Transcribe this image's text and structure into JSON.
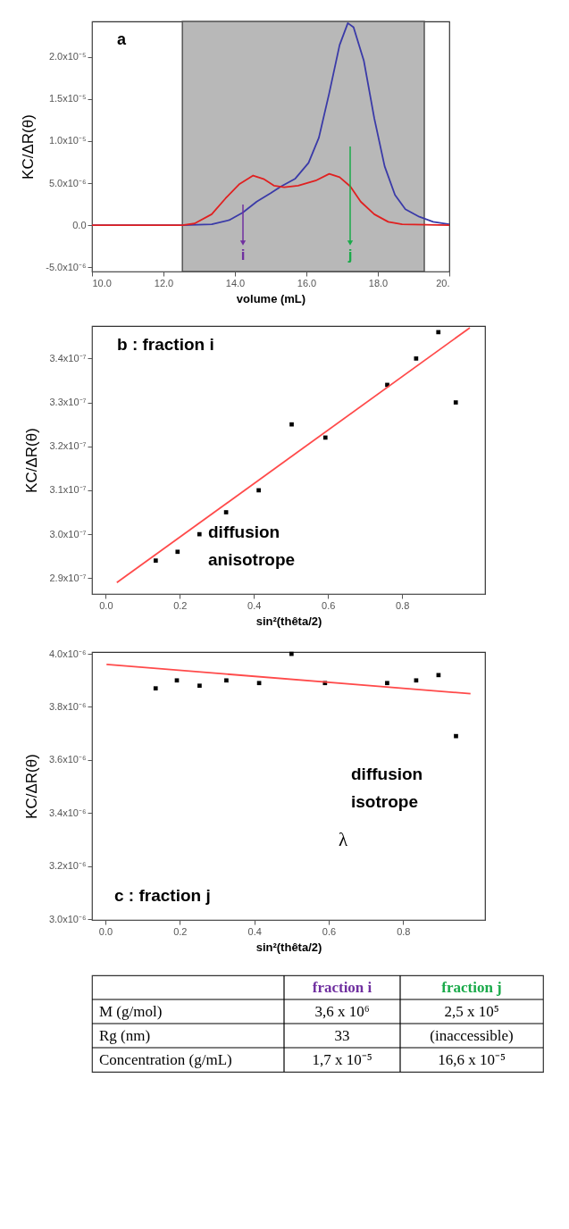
{
  "chart_data": [
    {
      "type": "line",
      "xlabel": "volume (mL)",
      "ylabel": "KC/ΔR(θ)",
      "annotations": [
        "a",
        "i",
        "j"
      ],
      "xlim": [
        10,
        20
      ],
      "ylim": [
        -5.5e-06,
        2.42e-05
      ],
      "xticks": [
        {
          "value": 10,
          "label": "10.0"
        },
        {
          "value": 12,
          "label": "12.0"
        },
        {
          "value": 14,
          "label": "14.0"
        },
        {
          "value": 16,
          "label": "16.0"
        },
        {
          "value": 18,
          "label": "18.0"
        },
        {
          "value": 20,
          "label": "20."
        }
      ],
      "yticks": [
        {
          "value": -5e-06,
          "label": "-5.0x10⁻⁶"
        },
        {
          "value": 0,
          "label": "0.0"
        },
        {
          "value": 5e-06,
          "label": "5.0x10⁻⁶"
        },
        {
          "value": 1e-05,
          "label": "1.0x10⁻⁵"
        },
        {
          "value": 1.5e-05,
          "label": "1.5x10⁻⁵"
        },
        {
          "value": 2e-05,
          "label": "2.0x10⁻⁵"
        }
      ],
      "bands": [
        {
          "axis": "x",
          "from": 12.53,
          "to": 19.3,
          "color": "#b8b8b8"
        }
      ],
      "series": [
        {
          "color": "#3a3aa8",
          "x": [
            10,
            12.53,
            13.35,
            13.84,
            14.22,
            14.61,
            15.0,
            15.29,
            15.68,
            16.06,
            16.35,
            16.64,
            16.93,
            17.16,
            17.32,
            17.61,
            17.9,
            18.19,
            18.48,
            18.77,
            19.16,
            19.55,
            20.0
          ],
          "values": [
            0,
            0,
            1e-07,
            6e-07,
            1.5e-06,
            2.8e-06,
            3.8e-06,
            4.6e-06,
            5.5e-06,
            7.4e-06,
            1.04e-05,
            1.57e-05,
            2.14e-05,
            2.4e-05,
            2.35e-05,
            1.95e-05,
            1.27e-05,
            7e-06,
            3.6e-06,
            1.9e-06,
            1e-06,
            4e-07,
            1e-07
          ]
        },
        {
          "color": "#e02020",
          "x": [
            10,
            12.53,
            12.87,
            13.35,
            13.74,
            14.13,
            14.51,
            14.8,
            15.09,
            15.38,
            15.77,
            16.26,
            16.64,
            16.93,
            17.23,
            17.52,
            17.9,
            18.29,
            18.68,
            20.0
          ],
          "values": [
            0,
            0,
            2e-07,
            1.3e-06,
            3.2e-06,
            4.9e-06,
            5.9e-06,
            5.5e-06,
            4.7e-06,
            4.5e-06,
            4.7e-06,
            5.3e-06,
            6.1e-06,
            5.7e-06,
            4.6e-06,
            2.8e-06,
            1.3e-06,
            4e-07,
            1e-07,
            0
          ]
        }
      ]
    },
    {
      "type": "scatter",
      "xlabel": "sin²(thêta/2)",
      "ylabel": "KC/ΔR(θ)",
      "annotations": [
        "b : fraction i",
        "diffusion anisotrope"
      ],
      "xlim": [
        -0.037,
        1.024
      ],
      "ylim": [
        2.864e-07,
        3.474e-07
      ],
      "xticks": [
        {
          "value": 0,
          "label": "0.0"
        },
        {
          "value": 0.2,
          "label": "0.2"
        },
        {
          "value": 0.4,
          "label": "0.4"
        },
        {
          "value": 0.6,
          "label": "0.6"
        },
        {
          "value": 0.8,
          "label": "0.8"
        }
      ],
      "yticks": [
        {
          "value": 2.9e-07,
          "label": "2.9x10⁻⁷"
        },
        {
          "value": 3e-07,
          "label": "3.0x10⁻⁷"
        },
        {
          "value": 3.1e-07,
          "label": "3.1x10⁻⁷"
        },
        {
          "value": 3.2e-07,
          "label": "3.2x10⁻⁷"
        },
        {
          "value": 3.3e-07,
          "label": "3.3x10⁻⁷"
        },
        {
          "value": 3.4e-07,
          "label": "3.4x10⁻⁷"
        }
      ],
      "series": [
        {
          "type": "scatter",
          "marker": "square",
          "color": "#000000",
          "x": [
            0.135,
            0.194,
            0.253,
            0.325,
            0.413,
            0.502,
            0.593,
            0.76,
            0.838,
            0.898,
            0.945
          ],
          "values": [
            2.94e-07,
            2.96e-07,
            3e-07,
            3.05e-07,
            3.1e-07,
            3.25e-07,
            3.22e-07,
            3.34e-07,
            3.4e-07,
            3.46e-07,
            3.3e-07
          ]
        },
        {
          "type": "line",
          "marker": "none",
          "color": "#ff4a4a",
          "x": [
            0.03,
            0.983
          ],
          "values": [
            2.89e-07,
            3.47e-07
          ]
        }
      ]
    },
    {
      "type": "scatter",
      "xlabel": "sin²(thêta/2)",
      "ylabel": "KC/ΔR(θ)",
      "annotations": [
        "c : fraction j",
        "diffusion isotrope",
        "λ"
      ],
      "xlim": [
        -0.036,
        1.02
      ],
      "ylim": [
        2.997e-06,
        4.007e-06
      ],
      "xticks": [
        {
          "value": 0,
          "label": "0.0"
        },
        {
          "value": 0.2,
          "label": "0.2"
        },
        {
          "value": 0.4,
          "label": "0.4"
        },
        {
          "value": 0.6,
          "label": "0.6"
        },
        {
          "value": 0.8,
          "label": "0.8"
        }
      ],
      "yticks": [
        {
          "value": 3e-06,
          "label": "3.0x10⁻⁶"
        },
        {
          "value": 3.2e-06,
          "label": "3.2x10⁻⁶"
        },
        {
          "value": 3.4e-06,
          "label": "3.4x10⁻⁶"
        },
        {
          "value": 3.6e-06,
          "label": "3.6x10⁻⁶"
        },
        {
          "value": 3.8e-06,
          "label": "3.8x10⁻⁶"
        },
        {
          "value": 4e-06,
          "label": "4.0x10⁻⁶"
        }
      ],
      "series": [
        {
          "type": "scatter",
          "marker": "square",
          "color": "#000000",
          "x": [
            0.135,
            0.192,
            0.253,
            0.325,
            0.413,
            0.5,
            0.59,
            0.757,
            0.835,
            0.895,
            0.942
          ],
          "values": [
            3.87e-06,
            3.9e-06,
            3.88e-06,
            3.9e-06,
            3.89e-06,
            4e-06,
            3.89e-06,
            3.89e-06,
            3.9e-06,
            3.92e-06,
            3.69e-06
          ]
        },
        {
          "type": "line",
          "marker": "none",
          "color": "#ff4a4a",
          "x": [
            0.003,
            0.981
          ],
          "values": [
            3.96e-06,
            3.85e-06
          ]
        }
      ]
    },
    {
      "type": "other",
      "annotations": [
        "fraction i",
        "fraction j",
        "M (g/mol)",
        "3,6 x 10⁶",
        "2,5 x 10⁵",
        "Rg (nm)",
        "33",
        "(inaccessible)",
        "Concentration (g/mL)",
        "1,7 x 10⁻⁵",
        "16,6 x 10⁻⁵"
      ]
    }
  ]
}
